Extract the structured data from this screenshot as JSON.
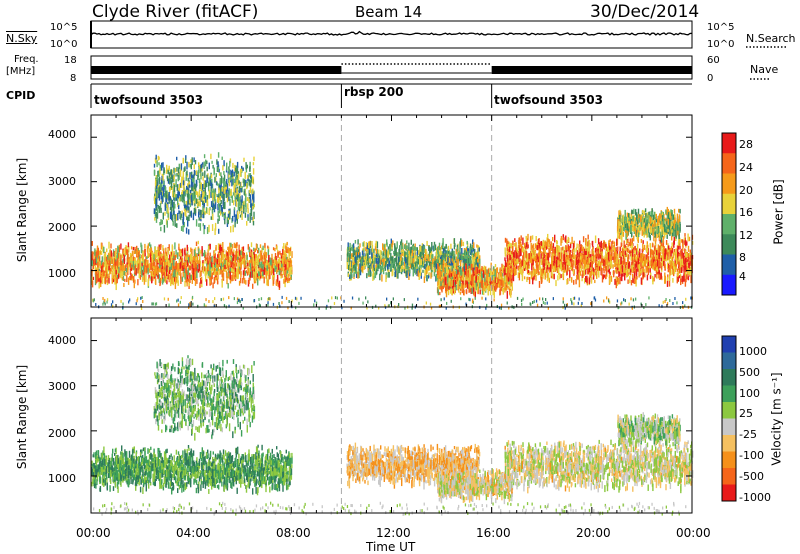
{
  "header": {
    "station": "Clyde River (fitACF)",
    "beam": "Beam 14",
    "date": "30/Dec/2014"
  },
  "colors": {
    "power": [
      "#1a1aff",
      "#1f5fa8",
      "#3d8a5a",
      "#5fb06a",
      "#e8d23a",
      "#f59a1a",
      "#f5651a",
      "#e81a1a"
    ],
    "velocity": [
      "#e81a1a",
      "#f5651a",
      "#f5901a",
      "#f5c060",
      "#c8c8c8",
      "#8cc840",
      "#3da05a",
      "#2e7a5a",
      "#2e6a9a",
      "#2040b0"
    ],
    "axis": "#000000",
    "dashed_line": "#aaaaaa"
  },
  "panels": {
    "nsky": {
      "left_label": "N.Sky",
      "left_ticks": [
        "10^5",
        "10^0"
      ],
      "right_ticks": [
        "10^5",
        "10^0"
      ],
      "right_label": "N.Search"
    },
    "freq": {
      "left_label_top": "Freq.",
      "left_label_bottom": "[MHz]",
      "left_ticks": [
        "18",
        "8"
      ],
      "right_ticks": [
        "60",
        "0"
      ],
      "right_label": "Nave"
    },
    "cpid": {
      "label": "CPID",
      "segments": [
        {
          "name": "twofsound 3503",
          "start_h": 0,
          "end_h": 10
        },
        {
          "name": "rbsp 200",
          "start_h": 10,
          "end_h": 16
        },
        {
          "name": "twofsound 3503",
          "start_h": 16,
          "end_h": 24
        }
      ]
    },
    "power": {
      "ylabel": "Slant Range [km]",
      "yticks": [
        "4000",
        "3000",
        "2000",
        "1000"
      ],
      "cbar_label": "Power [dB]",
      "cbar_ticks": [
        "28",
        "24",
        "20",
        "16",
        "12",
        "8",
        "4"
      ]
    },
    "velocity": {
      "ylabel": "Slant Range [km]",
      "yticks": [
        "4000",
        "3000",
        "2000",
        "1000"
      ],
      "cbar_label": "Velocity [m s⁻¹]",
      "cbar_ticks": [
        "1000",
        "500",
        "100",
        "25",
        "-25",
        "-100",
        "-500",
        "-1000"
      ]
    }
  },
  "x_axis": {
    "label": "Time UT",
    "ticks": [
      "00:00",
      "04:00",
      "08:00",
      "12:00",
      "16:00",
      "20:00",
      "00:00"
    ]
  },
  "chart_data": {
    "type": "heatmap",
    "title": "Clyde River (fitACF) Beam 14 30/Dec/2014",
    "xlabel": "Time UT",
    "ylabel": "Slant Range [km]",
    "xlim_hours": [
      0,
      24
    ],
    "ylim_km": [
      180,
      4500
    ],
    "mode_change_hours": [
      10,
      16
    ],
    "scatter_regions": [
      {
        "start_h": 0.0,
        "end_h": 8.0,
        "center_km": 1200,
        "halfwidth_km": 500,
        "power_db": 22,
        "velocity": 300
      },
      {
        "start_h": 2.5,
        "end_h": 6.5,
        "center_km": 2800,
        "halfwidth_km": 900,
        "power_db": 12,
        "velocity": 200
      },
      {
        "start_h": 10.2,
        "end_h": 15.5,
        "center_km": 1300,
        "halfwidth_km": 450,
        "power_db": 14,
        "velocity": -300
      },
      {
        "start_h": 13.8,
        "end_h": 16.8,
        "center_km": 850,
        "halfwidth_km": 350,
        "power_db": 22,
        "velocity": -150
      },
      {
        "start_h": 16.5,
        "end_h": 24.0,
        "center_km": 1300,
        "halfwidth_km": 550,
        "power_db": 24,
        "velocity": -120
      },
      {
        "start_h": 21.0,
        "end_h": 23.5,
        "center_km": 2100,
        "halfwidth_km": 350,
        "power_db": 16,
        "velocity": 30
      }
    ],
    "power_scale": {
      "min": 0,
      "max": 32,
      "label": "Power [dB]"
    },
    "velocity_scale": {
      "min": -1000,
      "max": 1000,
      "label": "Velocity [m s⁻¹]"
    }
  }
}
